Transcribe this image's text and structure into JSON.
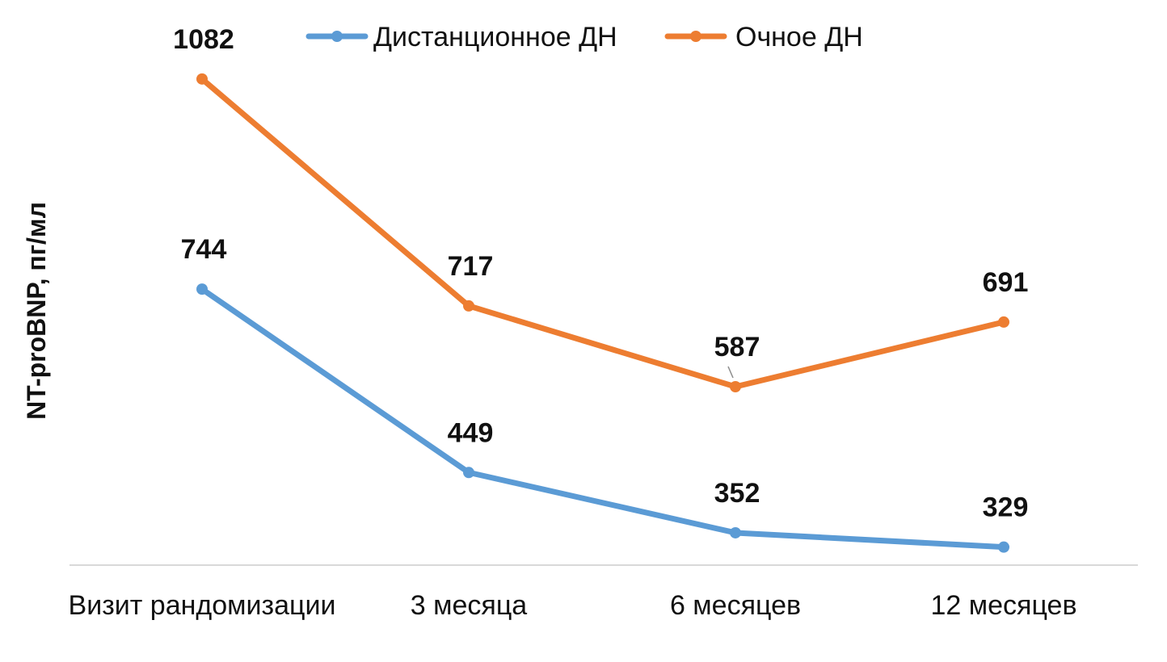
{
  "chart_data": {
    "type": "line",
    "categories": [
      "Визит рандомизации",
      "3 месяца",
      "6 месяцев",
      "12 месяцев"
    ],
    "series": [
      {
        "name": "Дистанционное ДН",
        "values": [
          744,
          449,
          352,
          329
        ],
        "labels": [
          "744",
          "449",
          "352",
          "329"
        ],
        "color": "#5B9BD5"
      },
      {
        "name": "Очное ДН",
        "values": [
          1082,
          717,
          587,
          691
        ],
        "labels": [
          "1082",
          "717",
          "587",
          "691"
        ],
        "color": "#ED7D31"
      }
    ],
    "ylabel": "NT-proBNP, пг/мл",
    "xlabel": "",
    "ylim": [
      300,
      1100
    ],
    "legend_position": "top",
    "grid": false,
    "axis_line_color": "#D9D9D9"
  }
}
